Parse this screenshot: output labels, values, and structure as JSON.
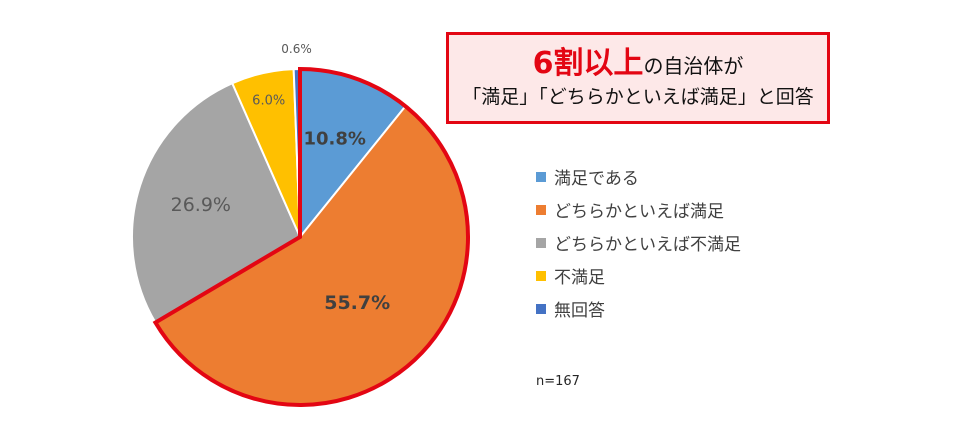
{
  "chart_data": {
    "type": "pie",
    "categories": [
      "満足である",
      "どちらかといえば満足",
      "どちらかといえば不満足",
      "不満足",
      "無回答"
    ],
    "values": [
      10.8,
      55.7,
      26.9,
      6.0,
      0.6
    ],
    "value_labels": [
      "10.8%",
      "55.7%",
      "26.9%",
      "6.0%",
      "0.6%"
    ],
    "colors": [
      "#5b9bd5",
      "#ed7d31",
      "#a5a5a5",
      "#ffc000",
      "#4472c4"
    ],
    "highlighted_slices": [
      0,
      1
    ],
    "highlight_color": "#e30613",
    "start_angle_deg": 0,
    "direction": "clockwise",
    "legend": "right",
    "sample_size": "n=167"
  },
  "callout": {
    "emphasis": "6割以上",
    "line1_rest": "の自治体が",
    "line2": "「満足」「どちらかといえば満足」と回答"
  }
}
